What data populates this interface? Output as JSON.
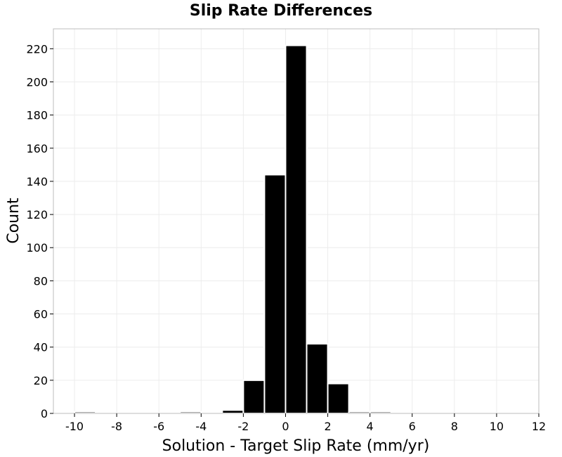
{
  "chart_data": {
    "type": "bar",
    "title": "Slip Rate Differences",
    "xlabel": "Solution - Target Slip Rate (mm/yr)",
    "ylabel": "Count",
    "xlim": [
      -11,
      12
    ],
    "ylim": [
      0,
      232
    ],
    "xticks": [
      -10,
      -8,
      -6,
      -4,
      -2,
      0,
      2,
      4,
      6,
      8,
      10,
      12
    ],
    "yticks": [
      0,
      20,
      40,
      60,
      80,
      100,
      120,
      140,
      160,
      180,
      200,
      220
    ],
    "bin_width": 1,
    "bins": [
      {
        "x": -10,
        "value": 1
      },
      {
        "x": -9,
        "value": 0
      },
      {
        "x": -8,
        "value": 0
      },
      {
        "x": -7,
        "value": 0
      },
      {
        "x": -6,
        "value": 0
      },
      {
        "x": -5,
        "value": 1
      },
      {
        "x": -4,
        "value": 0
      },
      {
        "x": -3,
        "value": 2
      },
      {
        "x": -2,
        "value": 20
      },
      {
        "x": -1,
        "value": 144
      },
      {
        "x": 0,
        "value": 222
      },
      {
        "x": 1,
        "value": 42
      },
      {
        "x": 2,
        "value": 18
      },
      {
        "x": 3,
        "value": 1
      },
      {
        "x": 4,
        "value": 1
      }
    ],
    "grid": true,
    "bar_color": "#000000",
    "bar_edge_color": "#ffffff"
  }
}
